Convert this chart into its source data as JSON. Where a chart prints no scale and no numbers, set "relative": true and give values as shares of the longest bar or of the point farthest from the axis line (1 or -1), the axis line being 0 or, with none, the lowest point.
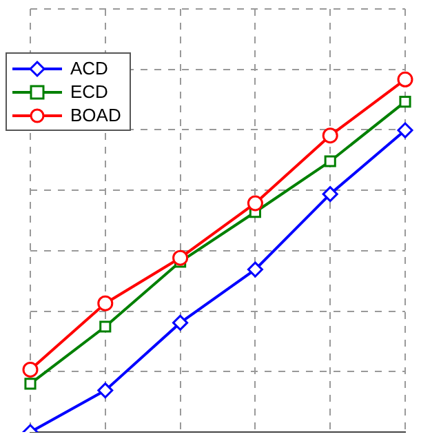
{
  "chart_data": {
    "type": "line",
    "relative": true,
    "categories": [
      null,
      null,
      null,
      null,
      null,
      null
    ],
    "tick_labels": false,
    "grid": true,
    "legend": "top left",
    "line_style": "solid",
    "series": [
      {
        "name": "ACD",
        "color": "#0000ff",
        "marker": "diamond",
        "values": [
          0,
          0.118,
          0.31,
          0.461,
          0.675,
          0.856
        ]
      },
      {
        "name": "ECD",
        "color": "#008000",
        "marker": "square",
        "values": [
          0.137,
          0.299,
          0.483,
          0.624,
          0.768,
          0.937
        ]
      },
      {
        "name": "BOAD",
        "color": "#ff0000",
        "marker": "circle",
        "values": [
          0.177,
          0.365,
          0.494,
          0.649,
          0.841,
          1
        ]
      }
    ]
  }
}
